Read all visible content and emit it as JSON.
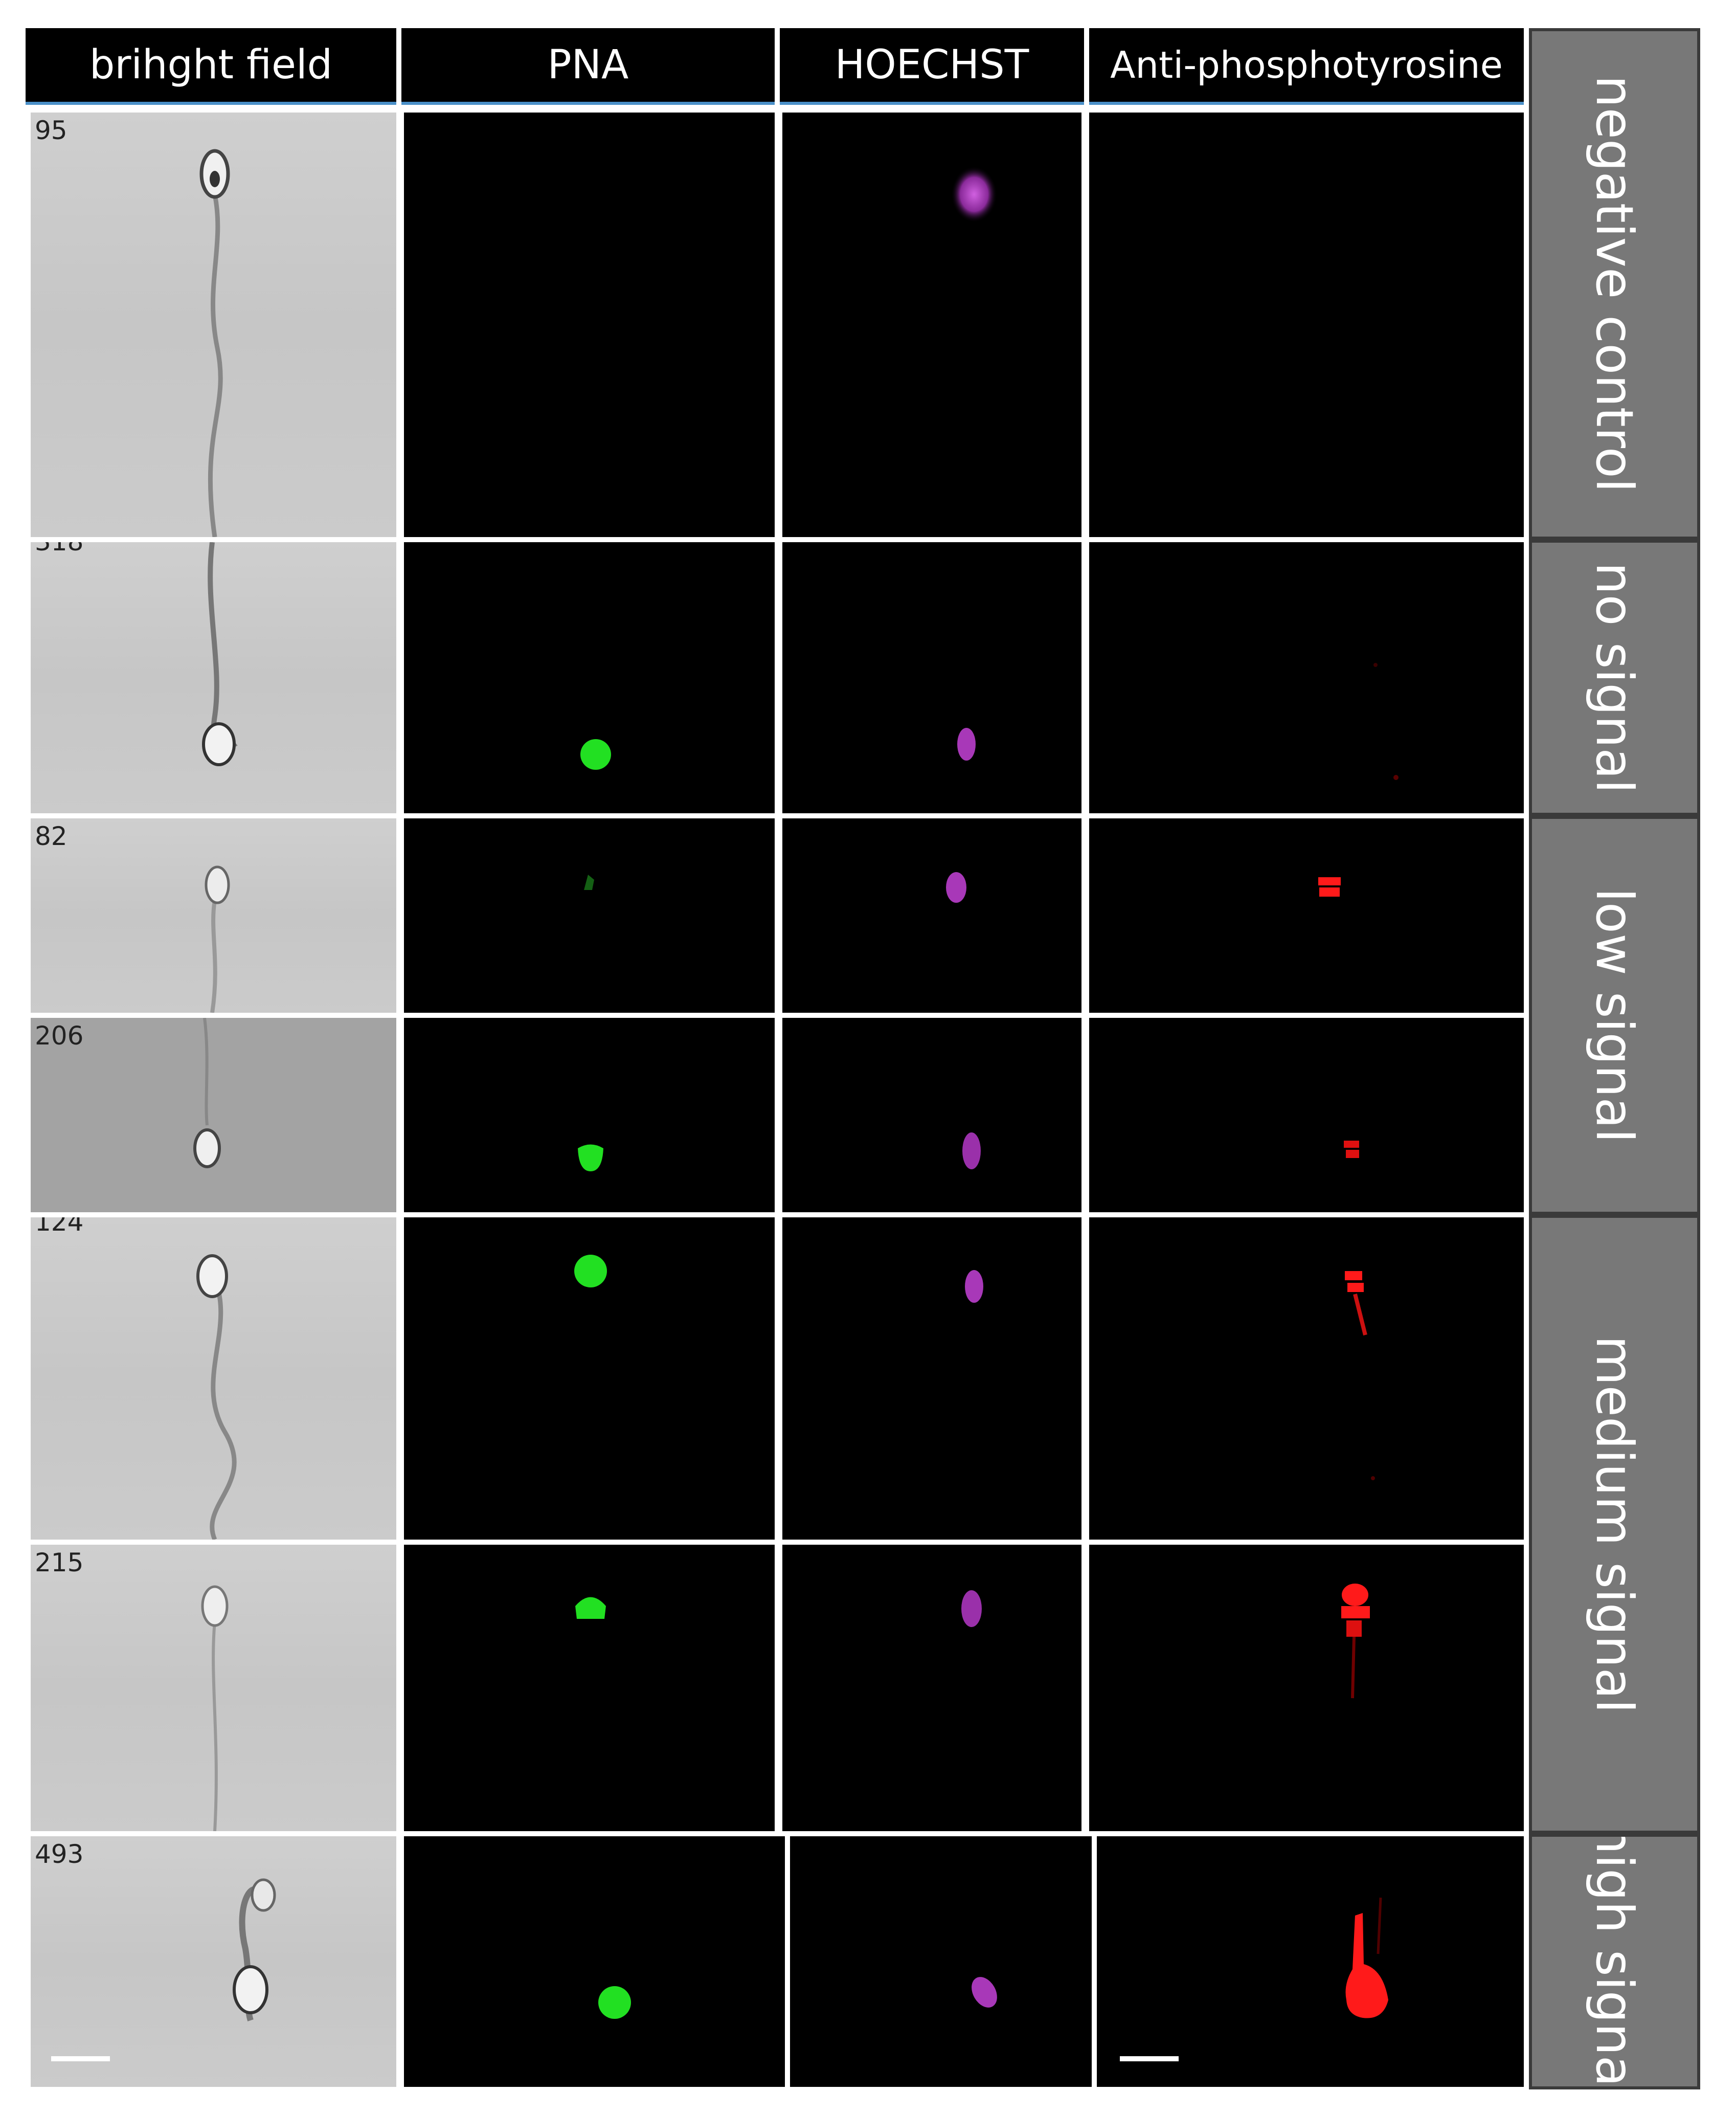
{
  "columns": [
    {
      "label": "brihght field"
    },
    {
      "label": "PNA"
    },
    {
      "label": "HOECHST"
    },
    {
      "label": "Anti-phosphotyrosine"
    }
  ],
  "rows": [
    {
      "cell_number": "95"
    },
    {
      "cell_number": "318"
    },
    {
      "cell_number": "82"
    },
    {
      "cell_number": "206"
    },
    {
      "cell_number": "124"
    },
    {
      "cell_number": "215"
    },
    {
      "cell_number": "493"
    }
  ],
  "row_groups": [
    {
      "label": "negative control"
    },
    {
      "label": "no signal"
    },
    {
      "label": "low signal"
    },
    {
      "label": "medium signal"
    },
    {
      "label": "high signal"
    }
  ],
  "colors": {
    "pna": "#22e022",
    "hoechst": "#b040c0",
    "anti_phosphotyrosine": "#ff1a1a",
    "label_panel": "#787878"
  }
}
